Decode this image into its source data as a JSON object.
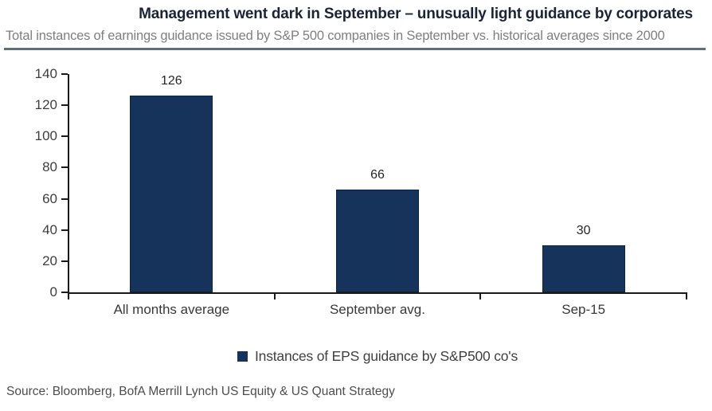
{
  "chart_data": {
    "type": "bar",
    "title": "Management went dark in September – unusually light guidance by corporates",
    "subtitle": "Total instances of earnings guidance issued by S&P 500 companies in September vs. historical averages since 2000",
    "categories": [
      "All months average",
      "September avg.",
      "Sep-15"
    ],
    "values": [
      126,
      66,
      30
    ],
    "data_labels": [
      "126",
      "66",
      "30"
    ],
    "series_name": "Instances of EPS guidance by S&P500 co's",
    "ylim": [
      0,
      140
    ],
    "yticks": [
      0,
      20,
      40,
      60,
      80,
      100,
      120,
      140
    ],
    "grid": false,
    "legend_position": "bottom",
    "bar_color": "#15335b"
  },
  "legend": {
    "label": "Instances of EPS guidance by S&P500 co's"
  },
  "source": {
    "text": "Source: Bloomberg, BofA Merrill Lynch US Equity & US Quant Strategy"
  },
  "colors": {
    "bar": "#15335b",
    "bar_border": "#0d2440",
    "title": "#1b2437",
    "subtitle": "#7f7f7f",
    "divider": "#5c6e80",
    "axis": "#1a1a1a",
    "tick_label": "#3d3d3d",
    "background": "#ffffff"
  }
}
